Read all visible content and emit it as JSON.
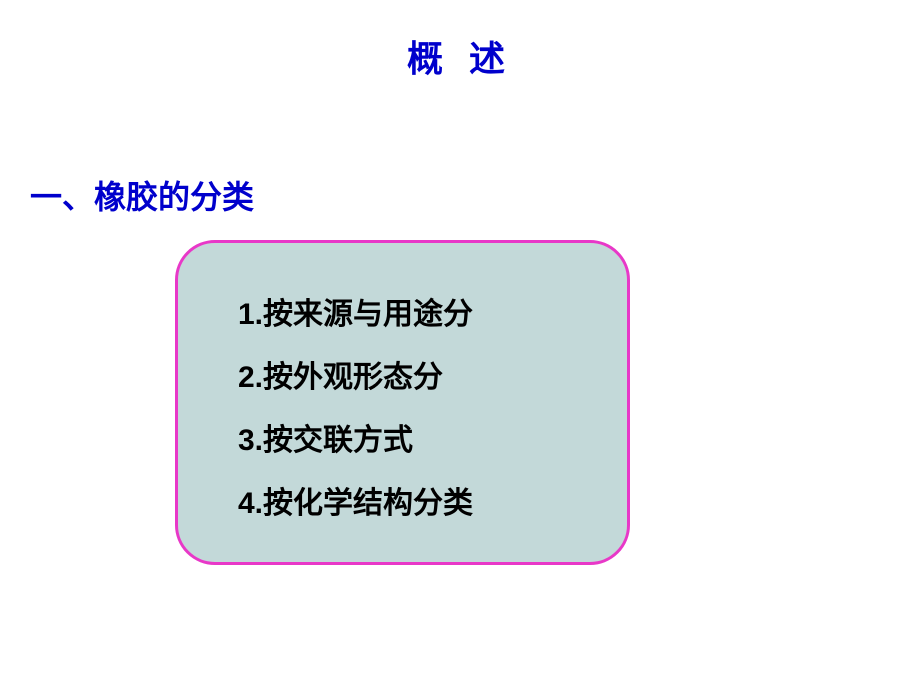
{
  "title": "概 述",
  "section_heading": "一、橡胶的分类",
  "items": [
    {
      "num": "1.",
      "text": "按来源与用途分"
    },
    {
      "num": "2.",
      "text": "按外观形态分"
    },
    {
      "num": "3.",
      "text": "按交联方式"
    },
    {
      "num": "4.",
      "text": "按化学结构分类"
    }
  ],
  "colors": {
    "title_color": "#0000cc",
    "heading_color": "#0000cc",
    "box_bg": "#c3d9d9",
    "box_border": "#e838c8",
    "item_color": "#000000",
    "page_bg": "#ffffff"
  },
  "typography": {
    "title_fontsize": 36,
    "heading_fontsize": 32,
    "item_fontsize": 30
  },
  "layout": {
    "border_radius": 40,
    "border_width": 3
  }
}
